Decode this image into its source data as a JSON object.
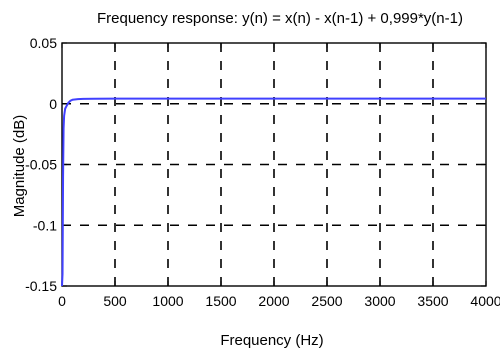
{
  "chart_data": {
    "type": "line",
    "title": "Frequency response: y(n) = x(n) - x(n-1) + 0,999*y(n-1)",
    "xlabel": "Frequency (Hz)",
    "ylabel": "Magnitude (dB)",
    "xlim": [
      0,
      4000
    ],
    "ylim": [
      -0.15,
      0.05
    ],
    "xticks": [
      0,
      500,
      1000,
      1500,
      2000,
      2500,
      3000,
      3500,
      4000
    ],
    "xtick_labels": [
      "0",
      "500",
      "1000",
      "1500",
      "2000",
      "2500",
      "3000",
      "3500",
      "4000"
    ],
    "yticks": [
      -0.15,
      -0.1,
      -0.05,
      0,
      0.05
    ],
    "ytick_labels": [
      "-0.15",
      "-0.1",
      "-0.05",
      "0",
      "0.05"
    ],
    "grid": true,
    "grid_style": "dashed",
    "series": [
      {
        "color": "#4040ff",
        "x": [
          0,
          5,
          10,
          15,
          20,
          30,
          45,
          60,
          80,
          100,
          150,
          200,
          300,
          500,
          800,
          1000,
          1500,
          2000,
          2500,
          3000,
          3500,
          4000
        ],
        "y": [
          -0.15,
          -0.14,
          -0.06,
          -0.02,
          -0.01,
          -0.004,
          -0.0015,
          0.0008,
          0.0025,
          0.0033,
          0.0038,
          0.004,
          0.0041,
          0.0042,
          0.0042,
          0.0042,
          0.0042,
          0.0042,
          0.0042,
          0.0042,
          0.0042,
          0.0042
        ]
      }
    ]
  }
}
